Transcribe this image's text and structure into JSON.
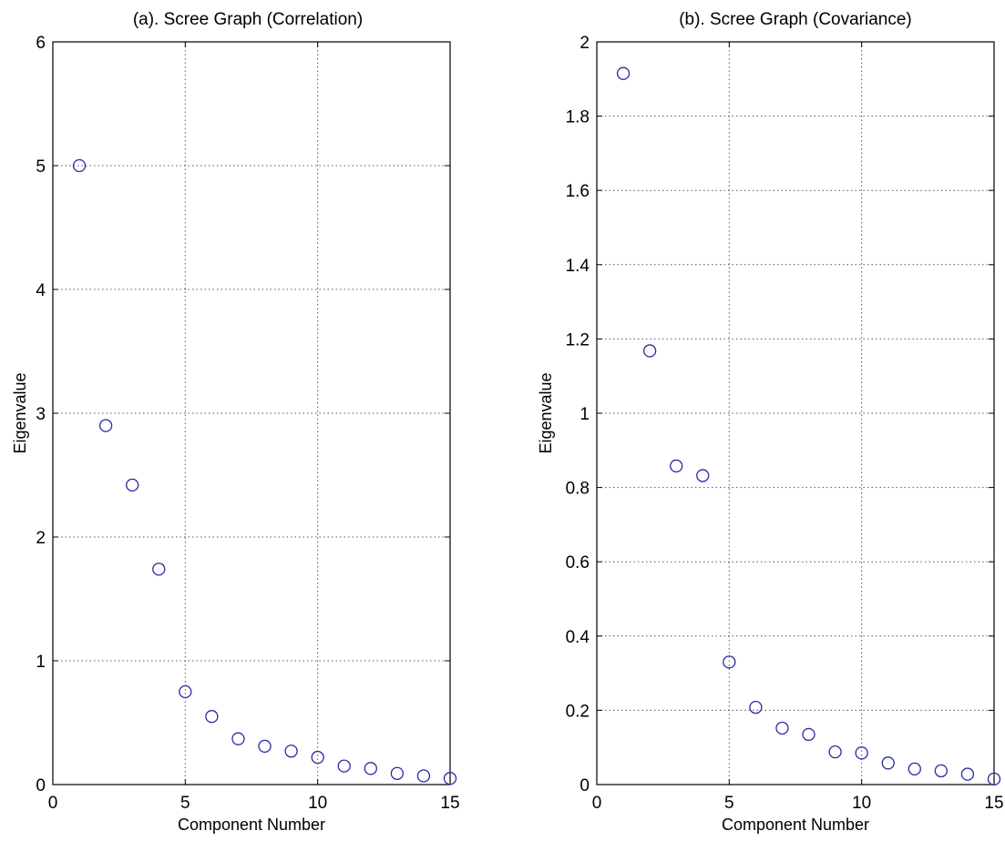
{
  "chart_data": [
    {
      "type": "scatter",
      "title": "(a).  Scree Graph (Correlation)",
      "xlabel": "Component Number",
      "ylabel": "Eigenvalue",
      "xlim": [
        0,
        15
      ],
      "ylim": [
        0,
        6
      ],
      "xticks": [
        "0",
        "5",
        "10",
        "15"
      ],
      "yticks": [
        "0",
        "1",
        "2",
        "3",
        "4",
        "5",
        "6"
      ],
      "grid": true,
      "marker": "circle",
      "marker_color": "#2a2aa0",
      "x": [
        1,
        2,
        3,
        4,
        5,
        6,
        7,
        8,
        9,
        10,
        11,
        12,
        13,
        14,
        15
      ],
      "y": [
        5.0,
        2.9,
        2.42,
        1.74,
        0.75,
        0.55,
        0.37,
        0.31,
        0.27,
        0.22,
        0.15,
        0.13,
        0.09,
        0.07,
        0.05
      ]
    },
    {
      "type": "scatter",
      "title": "(b).  Scree Graph (Covariance)",
      "xlabel": "Component Number",
      "ylabel": "Eigenvalue",
      "xlim": [
        0,
        15
      ],
      "ylim": [
        0,
        2
      ],
      "xticks": [
        "0",
        "5",
        "10",
        "15"
      ],
      "yticks": [
        "0",
        "0.2",
        "0.4",
        "0.6",
        "0.8",
        "1",
        "1.2",
        "1.4",
        "1.6",
        "1.8",
        "2"
      ],
      "grid": true,
      "marker": "circle",
      "marker_color": "#2a2aa0",
      "x": [
        1,
        2,
        3,
        4,
        5,
        6,
        7,
        8,
        9,
        10,
        11,
        12,
        13,
        14,
        15
      ],
      "y": [
        1.915,
        1.168,
        0.858,
        0.832,
        0.33,
        0.208,
        0.152,
        0.135,
        0.088,
        0.085,
        0.058,
        0.042,
        0.037,
        0.028,
        0.015
      ]
    }
  ]
}
